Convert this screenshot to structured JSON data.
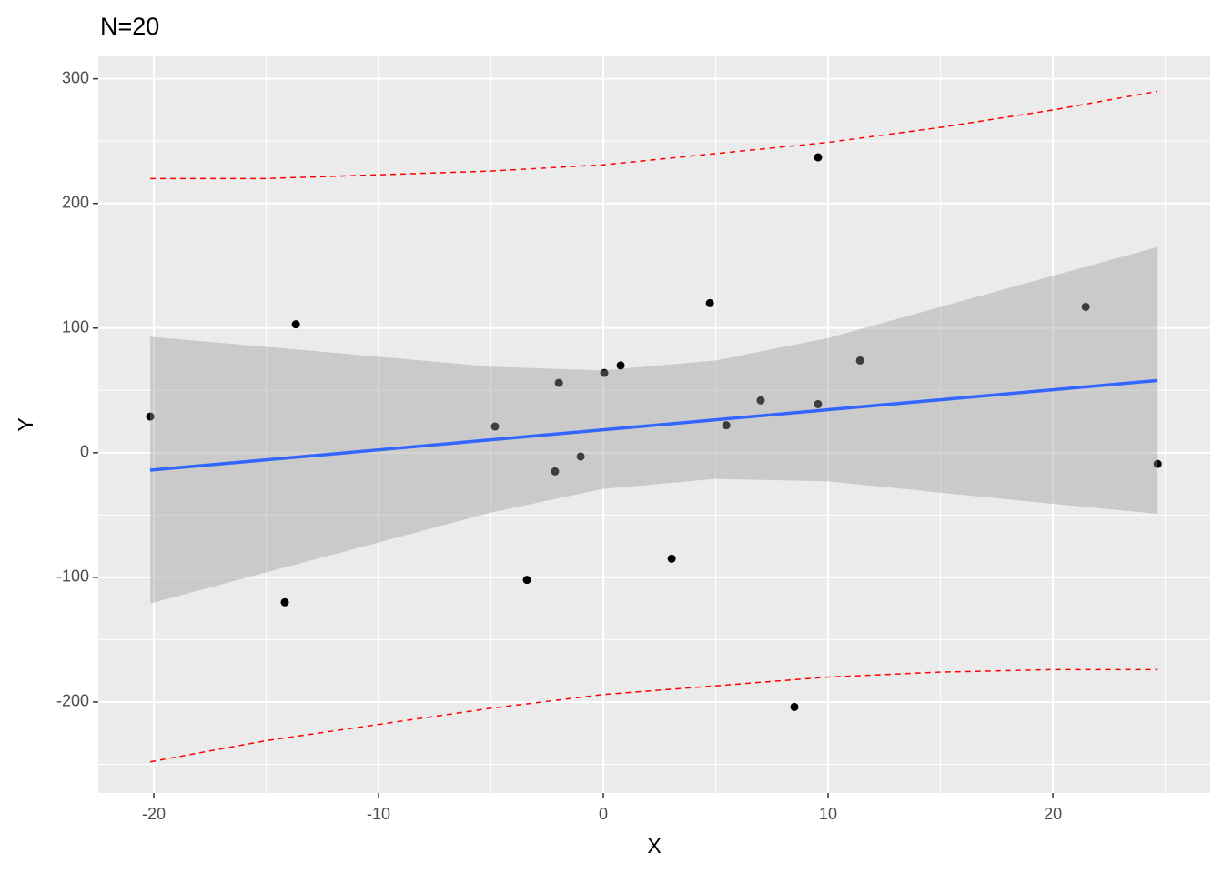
{
  "chart_data": {
    "type": "scatter",
    "title": "N=20",
    "x_label": "X",
    "y_label": "Y",
    "points": {
      "color": "#000000",
      "x": [
        -20.16,
        -14.17,
        -13.68,
        -4.82,
        -3.4,
        -2.15,
        -1.98,
        -1.01,
        0.04,
        0.77,
        3.04,
        4.74,
        5.47,
        7.0,
        8.5,
        9.55,
        9.55,
        11.42,
        21.46,
        24.66
      ],
      "y": [
        29,
        -120,
        103,
        21,
        -102,
        -15,
        56,
        -3,
        64,
        70,
        -85,
        120,
        22,
        42,
        -204,
        237,
        39,
        74,
        117,
        -9
      ]
    },
    "fit": {
      "color": "#3366ff",
      "band_color": "#999999",
      "band_alpha": 0.4,
      "x": [
        -20.16,
        -15,
        -10,
        -5,
        0,
        5,
        10,
        15,
        20,
        24.66
      ],
      "y": [
        -14,
        -5.7,
        2.3,
        10.4,
        18.4,
        26.4,
        34.5,
        42.5,
        50.5,
        58
      ],
      "lower": [
        -121,
        -96,
        -72,
        -48,
        -29,
        -21,
        -23,
        -32,
        -41,
        -49
      ],
      "upper": [
        93,
        85,
        77,
        69,
        66,
        74,
        92,
        117,
        142,
        165
      ]
    },
    "prediction": {
      "color": "#ff0000",
      "lower": [
        -248,
        -231,
        -218,
        -205,
        -194,
        -187,
        -180,
        -176,
        -174,
        -174
      ],
      "upper": [
        220,
        220,
        223,
        226,
        231,
        240,
        249,
        261,
        275,
        290
      ]
    },
    "xlim": [
      -22.47,
      27.0
    ],
    "ylim": [
      -273,
      318
    ],
    "xticks": [
      -20,
      -10,
      0,
      10,
      20
    ],
    "yticks": [
      -200,
      -100,
      0,
      100,
      200,
      300
    ],
    "x_minor_grid": [
      -15,
      -5,
      5,
      15,
      25
    ],
    "y_minor_grid": [
      -250,
      -150,
      -50,
      50,
      150,
      250
    ],
    "grid": true
  }
}
